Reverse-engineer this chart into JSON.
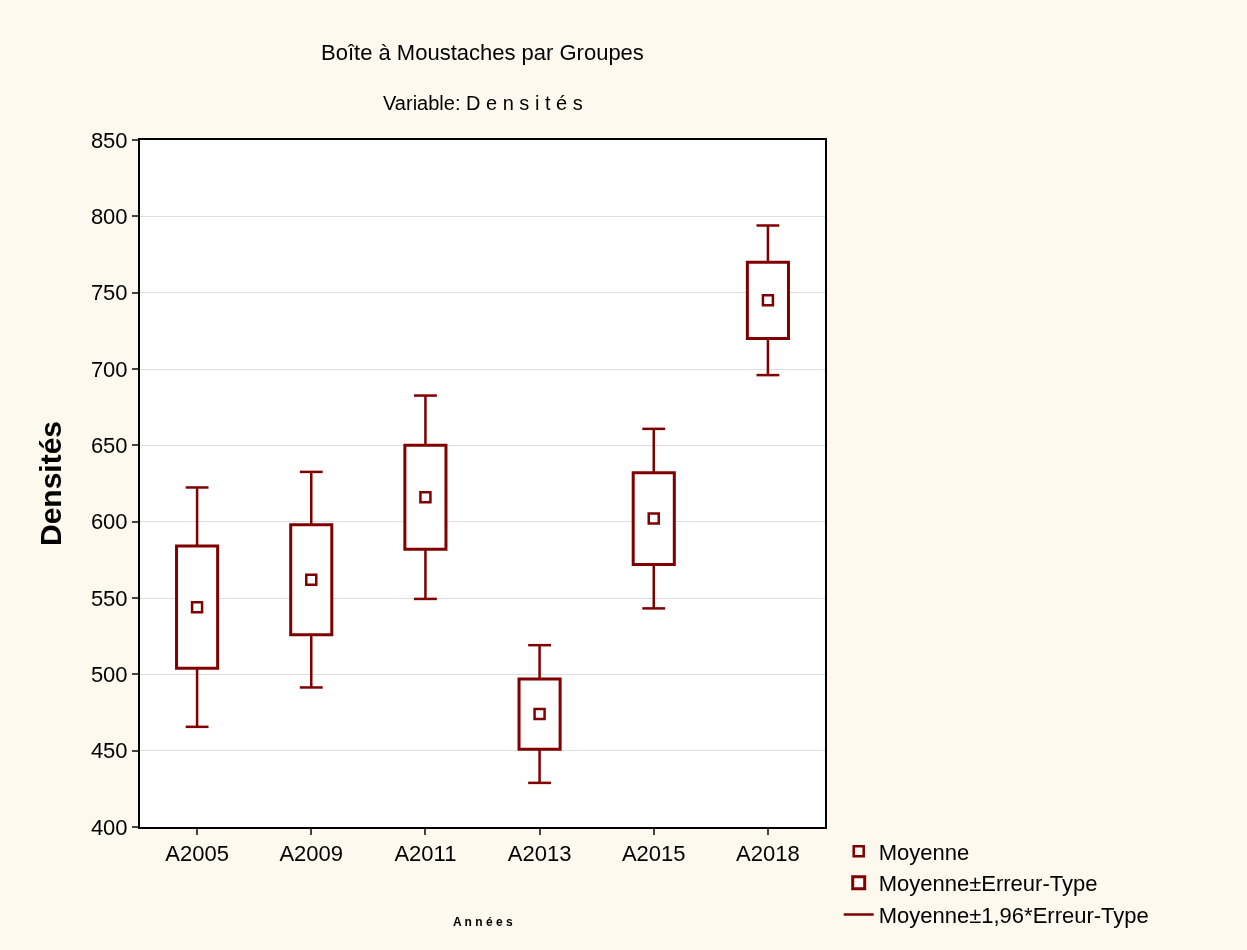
{
  "chart_data": {
    "type": "bar",
    "title": "Boîte à Moustaches par Groupes",
    "subtitle": "Variable: D e n s i t é s",
    "xlabel": "A n n é e s",
    "ylabel": "Densités",
    "categories": [
      "A2005",
      "A2009",
      "A2011",
      "A2013",
      "A2015",
      "A2018"
    ],
    "series": [
      {
        "name": "Moyenne",
        "type": "scatter",
        "marker": "square",
        "color": "#800000",
        "values": [
          544,
          562,
          616,
          474,
          602,
          745
        ],
        "errors": [
          78.4,
          70.6,
          66.6,
          45.1,
          58.8,
          49
        ]
      },
      {
        "name": "Moyenne±Erreur-Type",
        "color": "#800000",
        "base": [
          504,
          526,
          582,
          451,
          572,
          720
        ],
        "values": [
          80,
          72,
          68,
          46,
          60,
          50
        ]
      }
    ],
    "annotations": [
      "Moyenne±1,96*Erreur-Type"
    ],
    "ylim": [
      400,
      850
    ],
    "yticks": [
      400,
      450,
      500,
      550,
      600,
      650,
      700,
      750,
      800,
      850
    ],
    "grid": "y",
    "legend": "bottom right"
  }
}
